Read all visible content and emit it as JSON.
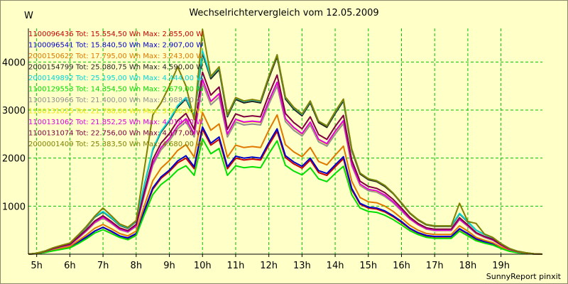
{
  "title": "Wechselrichtervergleich vom 12.05.2009",
  "unit_label": "W",
  "credit": "SunnyReport pinxit",
  "chart_data": {
    "type": "line",
    "title": "Wechselrichtervergleich vom 12.05.2009",
    "xlabel": "",
    "ylabel": "W",
    "x_ticks": [
      "5h",
      "6h",
      "7h",
      "8h",
      "9h",
      "10h",
      "11h",
      "12h",
      "13h",
      "14h",
      "15h",
      "16h",
      "17h",
      "18h",
      "19h"
    ],
    "y_ticks": [
      1000,
      2000,
      3000,
      4000
    ],
    "xlim": [
      4.75,
      20.25
    ],
    "ylim": [
      0,
      4700
    ],
    "grid": true,
    "legend_position": "top-left",
    "x": [
      4.75,
      5.0,
      5.25,
      5.5,
      5.75,
      6.0,
      6.25,
      6.5,
      6.75,
      7.0,
      7.25,
      7.5,
      7.75,
      8.0,
      8.25,
      8.5,
      8.75,
      9.0,
      9.25,
      9.5,
      9.75,
      10.0,
      10.25,
      10.5,
      10.75,
      11.0,
      11.25,
      11.5,
      11.75,
      12.0,
      12.25,
      12.5,
      12.75,
      13.0,
      13.25,
      13.5,
      13.75,
      14.0,
      14.25,
      14.5,
      14.75,
      15.0,
      15.25,
      15.5,
      15.75,
      16.0,
      16.25,
      16.5,
      16.75,
      17.0,
      17.25,
      17.5,
      17.75,
      18.0,
      18.25,
      18.5,
      18.75,
      19.0,
      19.25,
      19.5,
      19.75,
      20.0,
      20.25
    ],
    "series": [
      {
        "name": "1100096436",
        "legend": "1100096436 Tot: 15.554,50 Wh Max: 2.855,00 W",
        "color": "#c80000",
        "values": [
          0,
          10,
          40,
          80,
          110,
          140,
          240,
          350,
          480,
          560,
          470,
          380,
          330,
          420,
          900,
          1350,
          1580,
          1720,
          1900,
          2000,
          1780,
          2600,
          2270,
          2390,
          1780,
          2000,
          1960,
          1980,
          1960,
          2270,
          2560,
          2010,
          1880,
          1790,
          1960,
          1700,
          1640,
          1820,
          1990,
          1340,
          1040,
          960,
          940,
          880,
          780,
          660,
          530,
          440,
          380,
          360,
          360,
          360,
          520,
          420,
          310,
          250,
          210,
          130,
          70,
          40,
          20,
          5,
          0
        ]
      },
      {
        "name": "1100096541",
        "legend": "1100096541 Tot: 15.840,50 Wh Max: 2.907,00 W",
        "color": "#0000cc",
        "values": [
          0,
          10,
          40,
          80,
          110,
          140,
          250,
          360,
          480,
          560,
          480,
          380,
          340,
          430,
          920,
          1380,
          1610,
          1750,
          1940,
          2050,
          1820,
          2650,
          2310,
          2440,
          1820,
          2040,
          2000,
          2020,
          2000,
          2320,
          2610,
          2050,
          1920,
          1830,
          2000,
          1740,
          1680,
          1860,
          2030,
          1370,
          1060,
          980,
          960,
          900,
          800,
          680,
          540,
          450,
          390,
          370,
          370,
          370,
          530,
          430,
          320,
          260,
          220,
          140,
          80,
          40,
          20,
          5,
          0
        ]
      },
      {
        "name": "2000150622",
        "legend": "2000150622 Tot: 17.795,00 Wh Max: 3.243,00 W",
        "color": "#e07800",
        "values": [
          0,
          15,
          45,
          90,
          125,
          160,
          280,
          400,
          540,
          620,
          530,
          430,
          380,
          480,
          1020,
          1530,
          1790,
          1950,
          2160,
          2280,
          2020,
          2950,
          2580,
          2710,
          2020,
          2270,
          2220,
          2240,
          2220,
          2580,
          2900,
          2280,
          2130,
          2030,
          2220,
          1930,
          1860,
          2060,
          2250,
          1520,
          1180,
          1090,
          1070,
          1000,
          890,
          750,
          600,
          500,
          430,
          410,
          410,
          410,
          590,
          480,
          350,
          290,
          240,
          150,
          80,
          45,
          20,
          5,
          0
        ]
      },
      {
        "name": "2000154799",
        "legend": "2000154799 Tot: 25.080,75 Wh Max: 4.590,00 W",
        "color": "#222222",
        "values": [
          0,
          20,
          65,
          130,
          180,
          220,
          390,
          560,
          770,
          880,
          750,
          600,
          540,
          680,
          1450,
          2170,
          2540,
          2770,
          3060,
          3230,
          2860,
          4180,
          3650,
          3840,
          2860,
          3220,
          3150,
          3180,
          3150,
          3660,
          4110,
          3230,
          3020,
          2880,
          3150,
          2740,
          2640,
          2930,
          3190,
          2160,
          1670,
          1550,
          1510,
          1410,
          1260,
          1060,
          850,
          710,
          610,
          580,
          580,
          580,
          840,
          670,
          500,
          410,
          340,
          220,
          120,
          60,
          30,
          8,
          0
        ]
      },
      {
        "name": "2000149892",
        "legend": "2000149892 Tot: 25.195,00 Wh Max: 4.444,00 W",
        "color": "#00d8d8",
        "values": [
          0,
          20,
          65,
          130,
          180,
          225,
          390,
          570,
          780,
          890,
          760,
          610,
          550,
          690,
          1460,
          2190,
          2560,
          2790,
          3090,
          3260,
          2890,
          4230,
          3690,
          3880,
          2890,
          3250,
          3180,
          3210,
          3180,
          3700,
          4150,
          3260,
          3050,
          2910,
          3180,
          2770,
          2670,
          2960,
          3220,
          2180,
          1690,
          1570,
          1530,
          1430,
          1270,
          1070,
          860,
          720,
          620,
          590,
          590,
          590,
          850,
          680,
          500,
          410,
          340,
          220,
          120,
          60,
          30,
          8,
          0
        ]
      },
      {
        "name": "1100129553",
        "legend": "1100129553 Tot: 14.354,50 Wh Max: 2.679,00 W",
        "color": "#00e000",
        "values": [
          0,
          10,
          35,
          70,
          100,
          130,
          220,
          320,
          440,
          510,
          430,
          350,
          300,
          390,
          830,
          1240,
          1450,
          1580,
          1750,
          1840,
          1640,
          2400,
          2090,
          2200,
          1640,
          1840,
          1800,
          1820,
          1800,
          2090,
          2360,
          1850,
          1730,
          1650,
          1800,
          1570,
          1510,
          1680,
          1830,
          1240,
          960,
          890,
          870,
          810,
          720,
          610,
          490,
          410,
          350,
          330,
          330,
          330,
          480,
          380,
          280,
          230,
          190,
          120,
          60,
          30,
          15,
          4,
          0
        ]
      },
      {
        "name": "1100130966",
        "legend": "1100130966 Tot: 21.400,00 Wh Max: 3.988,00 W",
        "color": "#909090",
        "values": [
          0,
          18,
          55,
          110,
          155,
          190,
          330,
          480,
          650,
          750,
          640,
          510,
          460,
          580,
          1240,
          1850,
          2170,
          2360,
          2610,
          2760,
          2440,
          3560,
          3110,
          3270,
          2440,
          2750,
          2690,
          2710,
          2690,
          3120,
          3500,
          2760,
          2580,
          2460,
          2690,
          2340,
          2250,
          2500,
          2720,
          1840,
          1430,
          1320,
          1290,
          1200,
          1070,
          900,
          730,
          610,
          520,
          490,
          490,
          490,
          720,
          580,
          430,
          350,
          290,
          190,
          100,
          50,
          25,
          6,
          0
        ]
      },
      {
        "name": "1100131025",
        "legend": "1100131025 Tot: 21.788,00 Wh Max: 3.990,00 W",
        "color": "#e8e800",
        "values": [
          0,
          18,
          55,
          115,
          160,
          195,
          340,
          490,
          660,
          760,
          650,
          520,
          470,
          590,
          1260,
          1890,
          2210,
          2400,
          2660,
          2810,
          2490,
          3620,
          3170,
          3330,
          2490,
          2800,
          2740,
          2760,
          2740,
          3180,
          3570,
          2810,
          2630,
          2500,
          2740,
          2380,
          2290,
          2550,
          2770,
          1880,
          1450,
          1350,
          1310,
          1230,
          1090,
          920,
          740,
          620,
          530,
          500,
          500,
          500,
          730,
          590,
          440,
          360,
          300,
          190,
          100,
          50,
          25,
          6,
          0
        ]
      },
      {
        "name": "1100131062",
        "legend": "1100131062 Tot: 21.852,25 Wh Max: 4.018,00 W",
        "color": "#e000e0",
        "values": [
          0,
          18,
          56,
          115,
          160,
          195,
          340,
          490,
          665,
          765,
          655,
          520,
          470,
          590,
          1260,
          1890,
          2220,
          2410,
          2670,
          2820,
          2500,
          3640,
          3180,
          3340,
          2500,
          2810,
          2750,
          2770,
          2750,
          3190,
          3580,
          2820,
          2640,
          2510,
          2750,
          2390,
          2300,
          2560,
          2780,
          1880,
          1460,
          1350,
          1320,
          1230,
          1090,
          920,
          740,
          620,
          530,
          500,
          500,
          500,
          730,
          590,
          440,
          360,
          300,
          190,
          100,
          50,
          25,
          6,
          0
        ]
      },
      {
        "name": "1100131074",
        "legend": "1100131074 Tot: 22.756,00 Wh Max: 4.177,00 W",
        "color": "#800040",
        "values": [
          0,
          19,
          58,
          120,
          165,
          205,
          355,
          510,
          690,
          800,
          680,
          545,
          490,
          620,
          1310,
          1970,
          2310,
          2510,
          2780,
          2930,
          2600,
          3790,
          3310,
          3480,
          2600,
          2920,
          2860,
          2880,
          2860,
          3320,
          3730,
          2930,
          2740,
          2610,
          2860,
          2490,
          2390,
          2660,
          2890,
          1960,
          1520,
          1410,
          1370,
          1280,
          1140,
          960,
          770,
          640,
          550,
          520,
          520,
          520,
          760,
          610,
          450,
          370,
          310,
          200,
          110,
          55,
          27,
          7,
          0
        ]
      },
      {
        "name": "2000001409",
        "legend": "2000001409 Tot: 25.383,50 Wh Max: 4.680,00 W",
        "color": "#808000",
        "values": [
          0,
          20,
          66,
          135,
          185,
          230,
          400,
          580,
          790,
          960,
          800,
          630,
          560,
          700,
          1800,
          2900,
          3150,
          3500,
          3900,
          3500,
          2800,
          4680,
          3700,
          3900,
          2900,
          3260,
          3190,
          3220,
          3190,
          3700,
          4150,
          3270,
          3060,
          2920,
          3190,
          2770,
          2670,
          2970,
          3230,
          2190,
          1690,
          1570,
          1530,
          1430,
          1270,
          1070,
          860,
          720,
          620,
          590,
          590,
          590,
          1060,
          680,
          640,
          420,
          350,
          220,
          120,
          60,
          30,
          8,
          0
        ]
      }
    ]
  }
}
